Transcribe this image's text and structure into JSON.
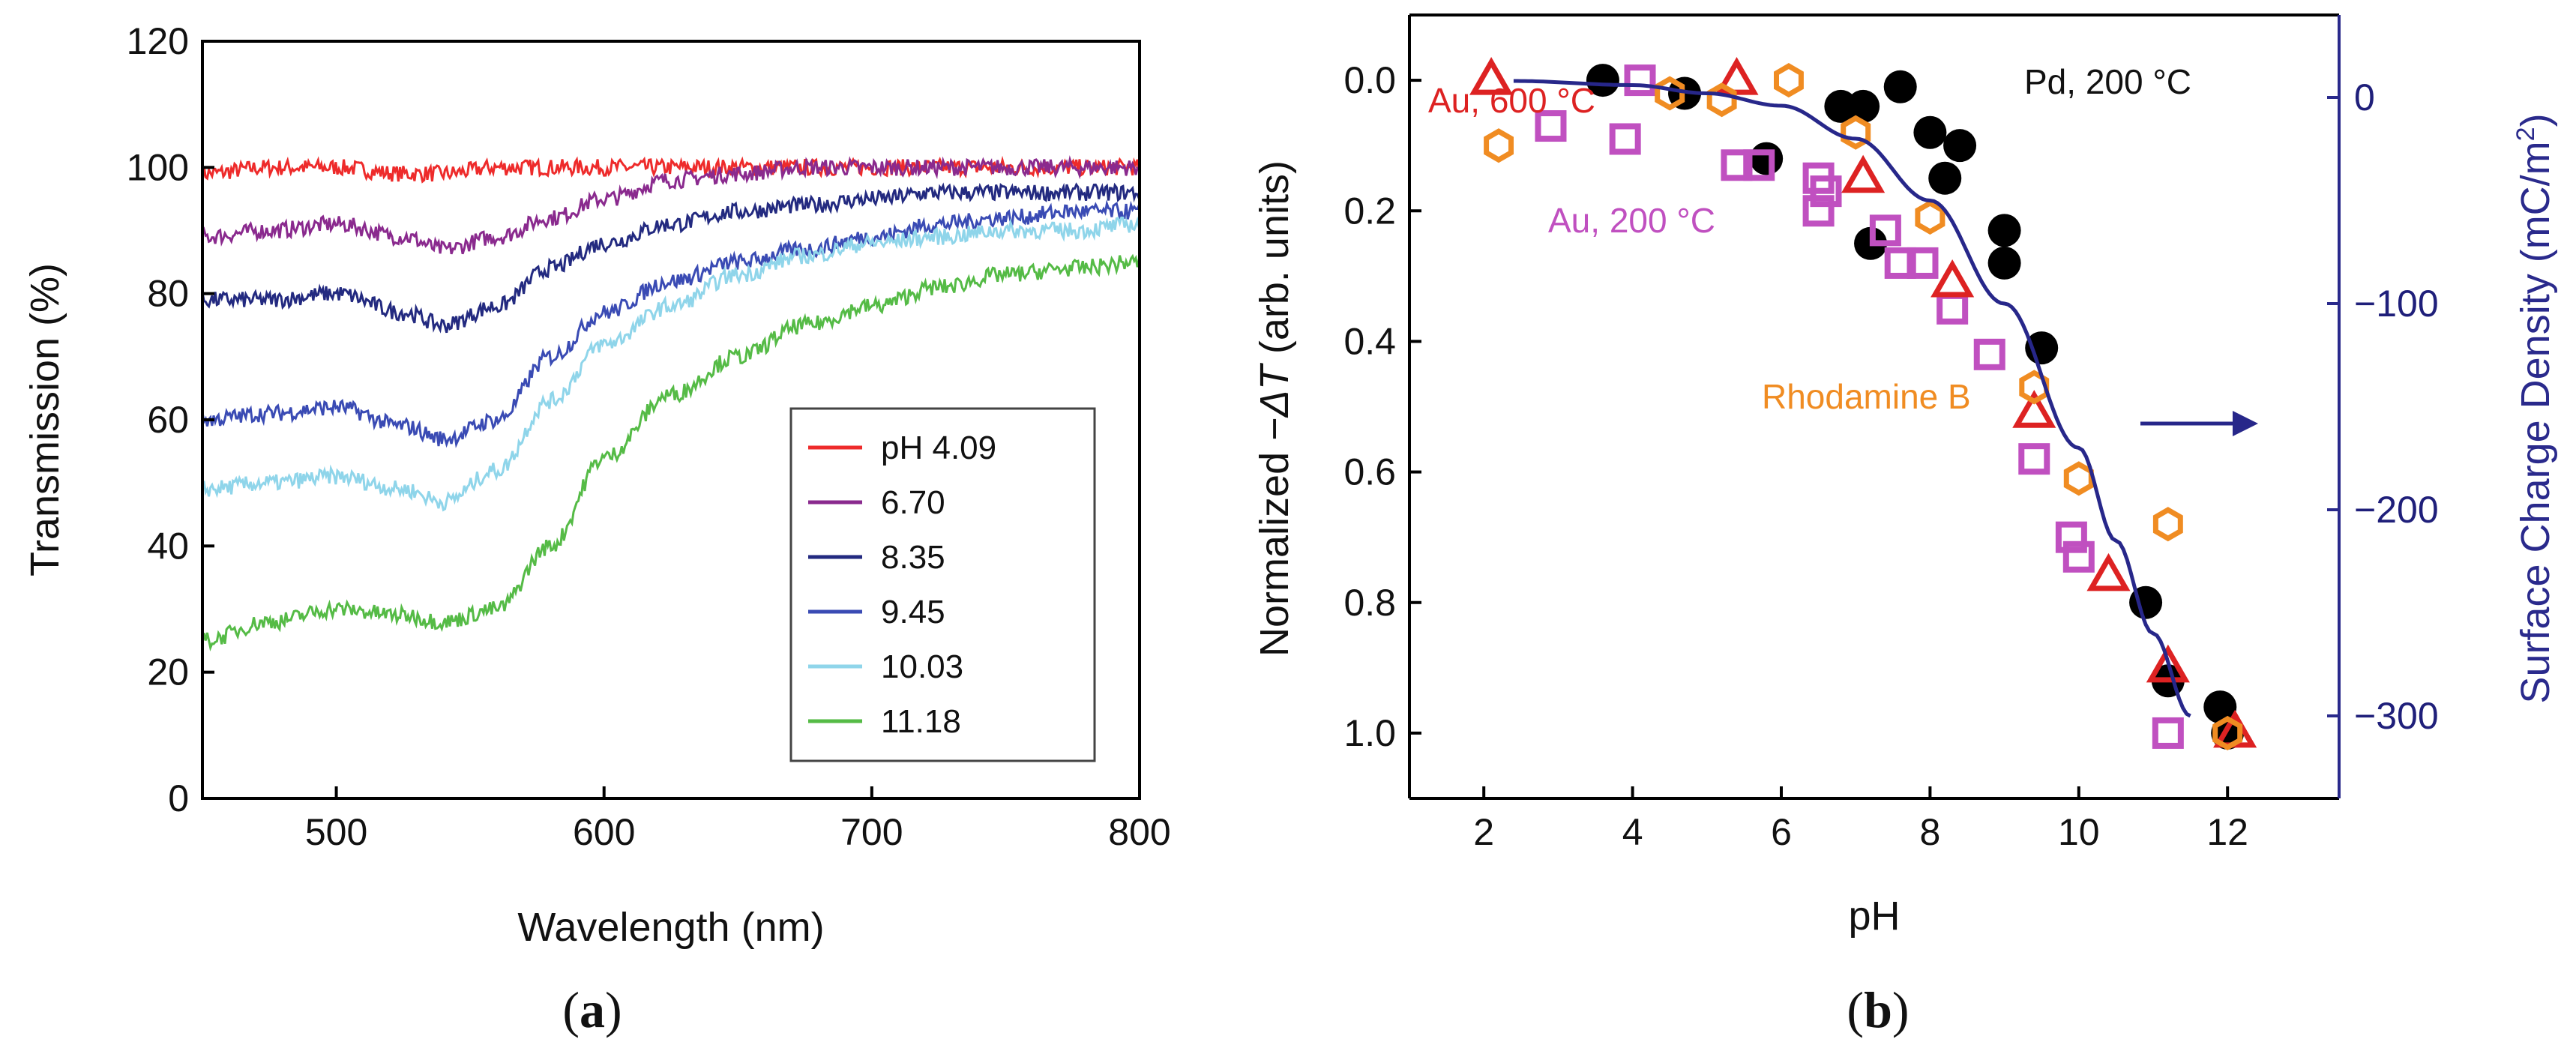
{
  "chart_data": [
    {
      "panel": "a",
      "type": "line",
      "title": "",
      "xlabel": "Wavelength (nm)",
      "ylabel": "Transmission (%)",
      "xlim": [
        450,
        800
      ],
      "ylim": [
        0,
        120
      ],
      "xticks": [
        "500",
        "600",
        "700",
        "800"
      ],
      "yticks": [
        "0",
        "20",
        "40",
        "60",
        "80",
        "100",
        "120"
      ],
      "legend_position": "center-right",
      "x": [
        450,
        475,
        500,
        525,
        540,
        560,
        580,
        600,
        625,
        650,
        675,
        700,
        725,
        750,
        775,
        800
      ],
      "series": [
        {
          "name": "pH 4.09",
          "color": "#ee2b2b",
          "values": [
            99,
            100,
            100,
            99,
            99,
            100,
            100,
            100,
            100,
            100,
            100,
            100,
            100,
            100,
            100,
            100
          ]
        },
        {
          "name": "6.70",
          "color": "#8a2a8e",
          "values": [
            89,
            90,
            91,
            89,
            87,
            89,
            92,
            95,
            98,
            99,
            100,
            100,
            100,
            100,
            100,
            100
          ]
        },
        {
          "name": "8.35",
          "color": "#232a80",
          "values": [
            79,
            79,
            80,
            77,
            75,
            78,
            84,
            88,
            91,
            93,
            94,
            95,
            96,
            96,
            96,
            96
          ]
        },
        {
          "name": "9.45",
          "color": "#3a4bb4",
          "values": [
            60,
            61,
            62,
            59,
            57,
            60,
            70,
            77,
            82,
            85,
            87,
            89,
            91,
            92,
            93,
            93
          ]
        },
        {
          "name": "10.03",
          "color": "#8fd5ea",
          "values": [
            49,
            50,
            51,
            49,
            47,
            52,
            63,
            72,
            78,
            83,
            86,
            88,
            89,
            90,
            90,
            91
          ]
        },
        {
          "name": "11.18",
          "color": "#55bb46",
          "values": [
            25,
            28,
            30,
            29,
            28,
            30,
            40,
            54,
            64,
            70,
            75,
            78,
            81,
            83,
            84,
            85
          ]
        }
      ]
    },
    {
      "panel": "b",
      "type": "scatter",
      "title": "",
      "xlabel": "pH",
      "ylabel_parts": [
        "Normalized −",
        "ΔT",
        " (arb. units)"
      ],
      "y2label": "Surface Charge Density (mC/m",
      "y2label_sup": "2",
      "y2label_end": ")",
      "xlim": [
        1,
        13.5
      ],
      "ylim": [
        1.1,
        -0.1
      ],
      "y2lim": [
        -340,
        40
      ],
      "xticks": [
        "2",
        "4",
        "6",
        "8",
        "10",
        "12"
      ],
      "yticks": [
        "0.0",
        "0.2",
        "0.4",
        "0.6",
        "0.8",
        "1.0"
      ],
      "y2ticks": [
        "0",
        "−100",
        "−200",
        "−300"
      ],
      "annotations": [
        {
          "text": "Au, 600 °C",
          "color": "#dd2222"
        },
        {
          "text": "Pd, 200 °C",
          "color": "#111111"
        },
        {
          "text": "Au, 200 °C",
          "color": "#c050c0"
        },
        {
          "text": "Rhodamine B",
          "color": "#f08c22"
        }
      ],
      "series": [
        {
          "name": "Pd, 200 °C",
          "marker": "circle",
          "color": "#000000",
          "x": [
            3.6,
            4.7,
            5.8,
            6.8,
            7.1,
            7.6,
            7.2,
            8.0,
            8.2,
            8.4,
            9.0,
            9.0,
            9.5,
            10.9,
            11.2,
            11.9,
            12.0
          ],
          "y": [
            0.0,
            0.02,
            0.12,
            0.04,
            0.04,
            0.01,
            0.25,
            0.08,
            0.15,
            0.1,
            0.23,
            0.28,
            0.41,
            0.8,
            0.92,
            0.96,
            1.0
          ]
        },
        {
          "name": "Au, 200 °C",
          "marker": "square",
          "color": "#c050c0",
          "x": [
            2.9,
            3.9,
            4.1,
            5.4,
            5.7,
            6.5,
            6.5,
            6.6,
            7.4,
            7.6,
            7.9,
            8.3,
            8.8,
            9.4,
            9.9,
            10.0,
            11.2
          ],
          "y": [
            0.07,
            0.09,
            0.0,
            0.13,
            0.13,
            0.15,
            0.2,
            0.17,
            0.23,
            0.28,
            0.28,
            0.35,
            0.42,
            0.58,
            0.7,
            0.73,
            1.0
          ]
        },
        {
          "name": "Au, 600 °C",
          "marker": "triangle",
          "color": "#dd2222",
          "x": [
            2.1,
            5.4,
            7.1,
            8.3,
            9.4,
            10.4,
            11.2,
            12.1
          ],
          "y": [
            0.0,
            0.0,
            0.15,
            0.31,
            0.51,
            0.76,
            0.9,
            1.0
          ]
        },
        {
          "name": "Rhodamine B",
          "marker": "hexagon",
          "color": "#f08c22",
          "x": [
            2.2,
            4.5,
            5.2,
            6.1,
            7.0,
            8.0,
            9.4,
            10.0,
            11.2,
            12.0
          ],
          "y": [
            0.1,
            0.02,
            0.03,
            0.0,
            0.08,
            0.21,
            0.47,
            0.61,
            0.68,
            1.0
          ]
        },
        {
          "name": "surface charge fit",
          "marker": "line",
          "color": "#27278a",
          "axis": "right",
          "x": [
            2.4,
            4.0,
            5.0,
            6.0,
            7.0,
            8.0,
            9.0,
            10.0,
            10.5,
            11.0,
            11.5
          ],
          "y": [
            8,
            6,
            2,
            -4,
            -20,
            -50,
            -100,
            -170,
            -215,
            -260,
            -300
          ]
        }
      ]
    }
  ],
  "panel_labels": {
    "a": "a",
    "b": "b"
  },
  "colors": {
    "axis_right": "#2a2a8c",
    "arrow": "#27278a"
  }
}
